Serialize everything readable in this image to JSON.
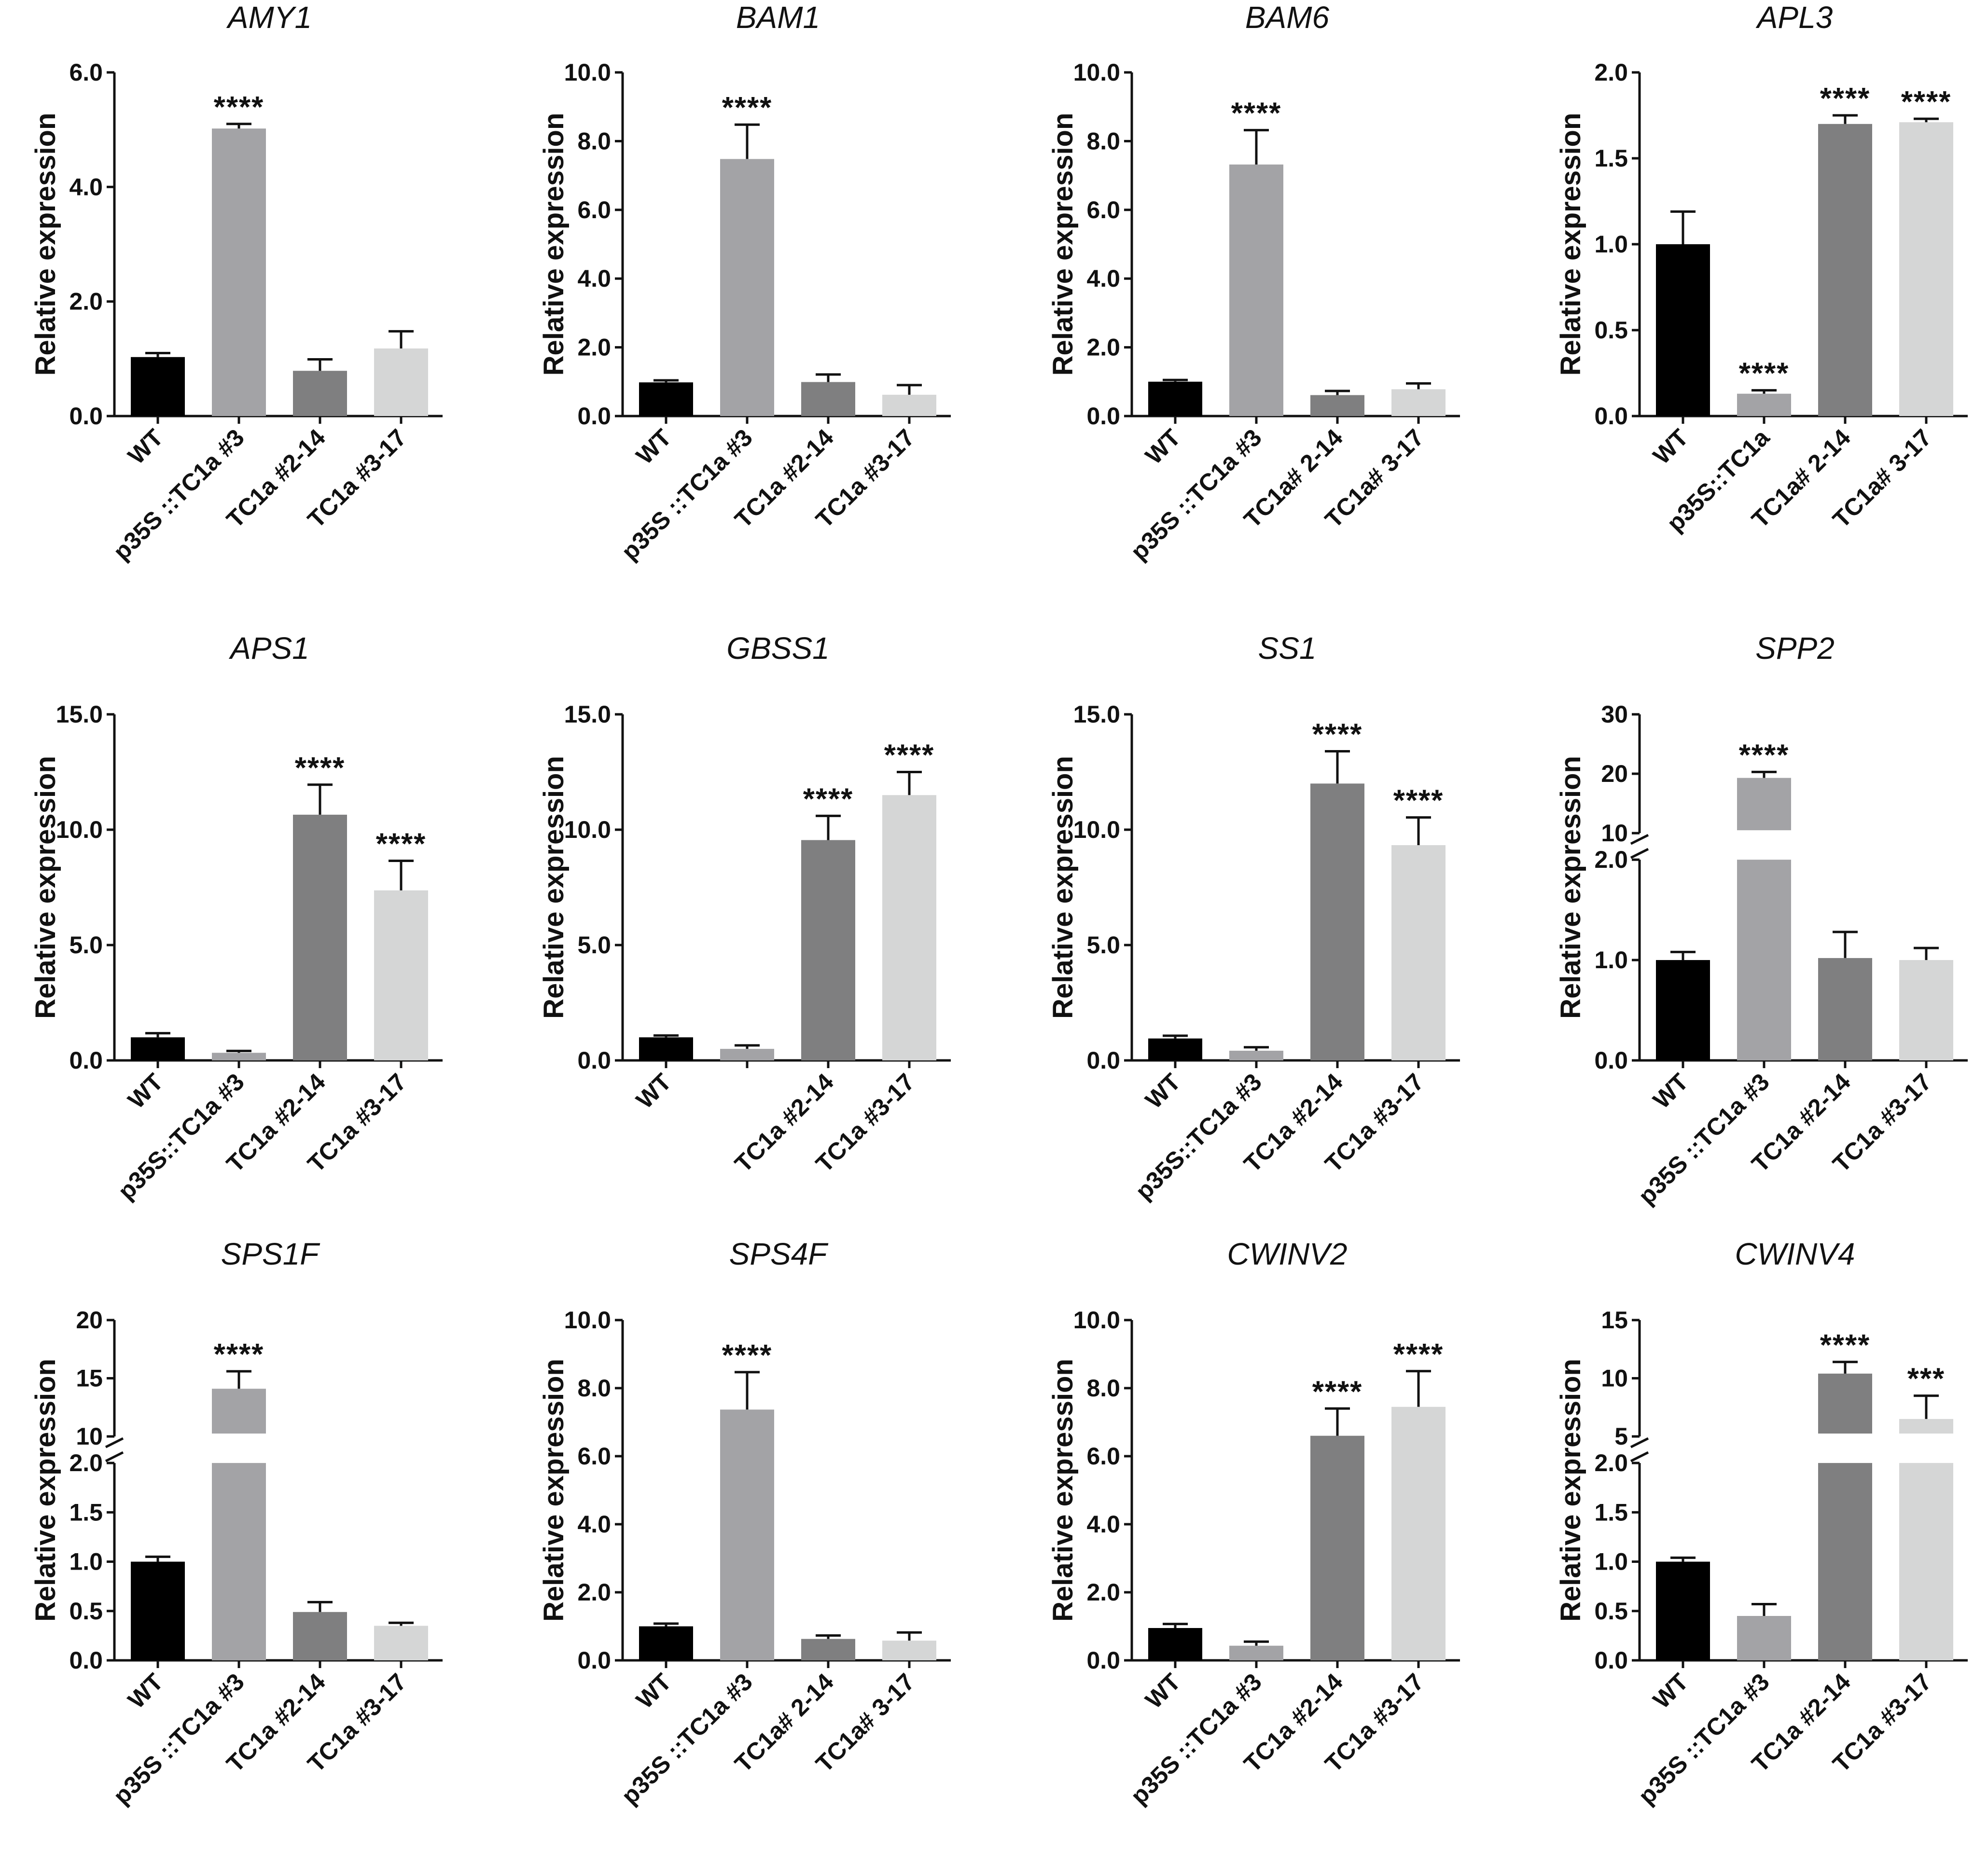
{
  "figure": {
    "y_axis_label": "Relative expression",
    "colors": [
      "#000000",
      "#a3a3a6",
      "#7f7f80",
      "#d5d6d6"
    ]
  },
  "chart_data": [
    {
      "type": "bar",
      "title": "AMY1",
      "ylabel": "Relative expression",
      "categories": [
        "WT",
        "p35S ::TC1a #3",
        "TC1a #2-14",
        "TC1a #3-17"
      ],
      "values": [
        1.03,
        5.02,
        0.79,
        1.18
      ],
      "errors": [
        0.07,
        0.08,
        0.2,
        0.3
      ],
      "significance": [
        "",
        "****",
        "",
        ""
      ],
      "ylim": [
        0,
        6
      ],
      "ticks": [
        0,
        2,
        4,
        6
      ],
      "tick_labels": [
        "0.0",
        "2.0",
        "4.0",
        "6.0"
      ]
    },
    {
      "type": "bar",
      "title": "BAM1",
      "ylabel": "Relative expression",
      "categories": [
        "WT",
        "p35S ::TC1a #3",
        "TC1a #2-14",
        "TC1a #3-17"
      ],
      "values": [
        0.98,
        7.48,
        0.99,
        0.62
      ],
      "errors": [
        0.06,
        1.0,
        0.22,
        0.28
      ],
      "significance": [
        "",
        "****",
        "",
        ""
      ],
      "ylim": [
        0,
        10
      ],
      "ticks": [
        0,
        2,
        4,
        6,
        8,
        10
      ],
      "tick_labels": [
        "0.0",
        "2.0",
        "4.0",
        "6.0",
        "8.0",
        "10.0"
      ]
    },
    {
      "type": "bar",
      "title": "BAM6",
      "ylabel": "Relative expression",
      "categories": [
        "WT",
        "p35S ::TC1a #3",
        "TC1a# 2-14",
        "TC1a# 3-17"
      ],
      "values": [
        1.0,
        7.32,
        0.61,
        0.78
      ],
      "errors": [
        0.05,
        1.0,
        0.12,
        0.17
      ],
      "significance": [
        "",
        "****",
        "",
        ""
      ],
      "ylim": [
        0,
        10
      ],
      "ticks": [
        0,
        2,
        4,
        6,
        8,
        10
      ],
      "tick_labels": [
        "0.0",
        "2.0",
        "4.0",
        "6.0",
        "8.0",
        "10.0"
      ]
    },
    {
      "type": "bar",
      "title": "APL3",
      "ylabel": "Relative expression",
      "categories": [
        "WT",
        "p35S::TC1a",
        "TC1a# 2-14",
        "TC1a# 3-17"
      ],
      "values": [
        1.0,
        0.13,
        1.7,
        1.71
      ],
      "errors": [
        0.19,
        0.02,
        0.05,
        0.02
      ],
      "significance": [
        "",
        "****",
        "****",
        "****"
      ],
      "ylim": [
        0,
        2
      ],
      "ticks": [
        0,
        0.5,
        1,
        1.5,
        2
      ],
      "tick_labels": [
        "0.0",
        "0.5",
        "1.0",
        "1.5",
        "2.0"
      ]
    },
    {
      "type": "bar",
      "title": "APS1",
      "ylabel": "Relative expression",
      "categories": [
        "WT",
        "p35S::TC1a #3",
        "TC1a #2-14",
        "TC1a #3-17"
      ],
      "values": [
        1.0,
        0.33,
        10.65,
        7.37
      ],
      "errors": [
        0.18,
        0.08,
        1.3,
        1.28
      ],
      "significance": [
        "",
        "",
        "****",
        "****"
      ],
      "ylim": [
        0,
        15
      ],
      "ticks": [
        0,
        5,
        10,
        15
      ],
      "tick_labels": [
        "0.0",
        "5.0",
        "10.0",
        "15.0"
      ]
    },
    {
      "type": "bar",
      "title": "GBSS1",
      "ylabel": "Relative expression",
      "categories": [
        "WT",
        "",
        "TC1a #2-14",
        "TC1a #3-17"
      ],
      "values": [
        1.0,
        0.5,
        9.55,
        11.5
      ],
      "errors": [
        0.08,
        0.15,
        1.05,
        1.0
      ],
      "significance": [
        "",
        "",
        "****",
        "****"
      ],
      "ylim": [
        0,
        15
      ],
      "ticks": [
        0,
        5,
        10,
        15
      ],
      "tick_labels": [
        "0.0",
        "5.0",
        "10.0",
        "15.0"
      ]
    },
    {
      "type": "bar",
      "title": "SS1",
      "ylabel": "Relative expression",
      "categories": [
        "WT",
        "p35S::TC1a #3",
        "TC1a #2-14",
        "TC1a #3-17"
      ],
      "values": [
        0.95,
        0.42,
        12.0,
        9.33
      ],
      "errors": [
        0.12,
        0.15,
        1.4,
        1.2
      ],
      "significance": [
        "",
        "",
        "****",
        "****"
      ],
      "ylim": [
        0,
        15
      ],
      "ticks": [
        0,
        5,
        10,
        15
      ],
      "tick_labels": [
        "0.0",
        "5.0",
        "10.0",
        "15.0"
      ]
    },
    {
      "type": "bar",
      "title": "SPP2",
      "ylabel": "Relative expression",
      "axis_break": true,
      "categories": [
        "WT",
        "p35S ::TC1a #3",
        "TC1a #2-14",
        "TC1a #3-17"
      ],
      "values": [
        1.0,
        19.3,
        1.02,
        1.0
      ],
      "errors": [
        0.08,
        1.0,
        0.26,
        0.12
      ],
      "significance": [
        "",
        "****",
        "",
        ""
      ],
      "lower_range": [
        0,
        2
      ],
      "upper_range": [
        10,
        30
      ],
      "lower_ticks": [
        0,
        1,
        2
      ],
      "lower_tick_labels": [
        "0.0",
        "1.0",
        "2.0"
      ],
      "upper_ticks": [
        10,
        20,
        30
      ],
      "upper_tick_labels": [
        "10",
        "20",
        "30"
      ]
    },
    {
      "type": "bar",
      "title": "SPS1F",
      "ylabel": "Relative expression",
      "axis_break": true,
      "categories": [
        "WT",
        "p35S ::TC1a #3",
        "TC1a #2-14",
        "TC1a #3-17"
      ],
      "values": [
        1.0,
        14.1,
        0.49,
        0.35
      ],
      "errors": [
        0.05,
        1.5,
        0.1,
        0.03
      ],
      "significance": [
        "",
        "****",
        "",
        ""
      ],
      "lower_range": [
        0,
        2
      ],
      "upper_range": [
        10,
        20
      ],
      "lower_ticks": [
        0,
        0.5,
        1,
        1.5,
        2
      ],
      "lower_tick_labels": [
        "0.0",
        "0.5",
        "1.0",
        "1.5",
        "2.0"
      ],
      "upper_ticks": [
        10,
        15,
        20
      ],
      "upper_tick_labels": [
        "10",
        "15",
        "20"
      ]
    },
    {
      "type": "bar",
      "title": "SPS4F",
      "ylabel": "Relative expression",
      "categories": [
        "WT",
        "p35S ::TC1a #3",
        "TC1a# 2-14",
        "TC1a# 3-17"
      ],
      "values": [
        1.0,
        7.37,
        0.63,
        0.58
      ],
      "errors": [
        0.08,
        1.1,
        0.1,
        0.24
      ],
      "significance": [
        "",
        "****",
        "",
        ""
      ],
      "ylim": [
        0,
        10
      ],
      "ticks": [
        0,
        2,
        4,
        6,
        8,
        10
      ],
      "tick_labels": [
        "0.0",
        "2.0",
        "4.0",
        "6.0",
        "8.0",
        "10.0"
      ]
    },
    {
      "type": "bar",
      "title": "CWINV2",
      "ylabel": "Relative expression",
      "categories": [
        "WT",
        "p35S ::TC1a #3",
        "TC1a #2-14",
        "TC1a #3-17"
      ],
      "values": [
        0.95,
        0.43,
        6.6,
        7.45
      ],
      "errors": [
        0.12,
        0.12,
        0.8,
        1.05
      ],
      "significance": [
        "",
        "",
        "****",
        "****"
      ],
      "ylim": [
        0,
        10
      ],
      "ticks": [
        0,
        2,
        4,
        6,
        8,
        10
      ],
      "tick_labels": [
        "0.0",
        "2.0",
        "4.0",
        "6.0",
        "8.0",
        "10.0"
      ]
    },
    {
      "type": "bar",
      "title": "CWINV4",
      "ylabel": "Relative expression",
      "axis_break": true,
      "categories": [
        "WT",
        "p35S ::TC1a #3",
        "TC1a #2-14",
        "TC1a #3-17"
      ],
      "values": [
        1.0,
        0.45,
        10.4,
        6.5
      ],
      "errors": [
        0.04,
        0.12,
        1.0,
        2.0
      ],
      "significance": [
        "",
        "",
        "****",
        "***"
      ],
      "lower_range": [
        0,
        2
      ],
      "upper_range": [
        5,
        15
      ],
      "lower_ticks": [
        0,
        0.5,
        1,
        1.5,
        2
      ],
      "lower_tick_labels": [
        "0.0",
        "0.5",
        "1.0",
        "1.5",
        "2.0"
      ],
      "upper_ticks": [
        5,
        10,
        15
      ],
      "upper_tick_labels": [
        "5",
        "10",
        "15"
      ]
    }
  ]
}
